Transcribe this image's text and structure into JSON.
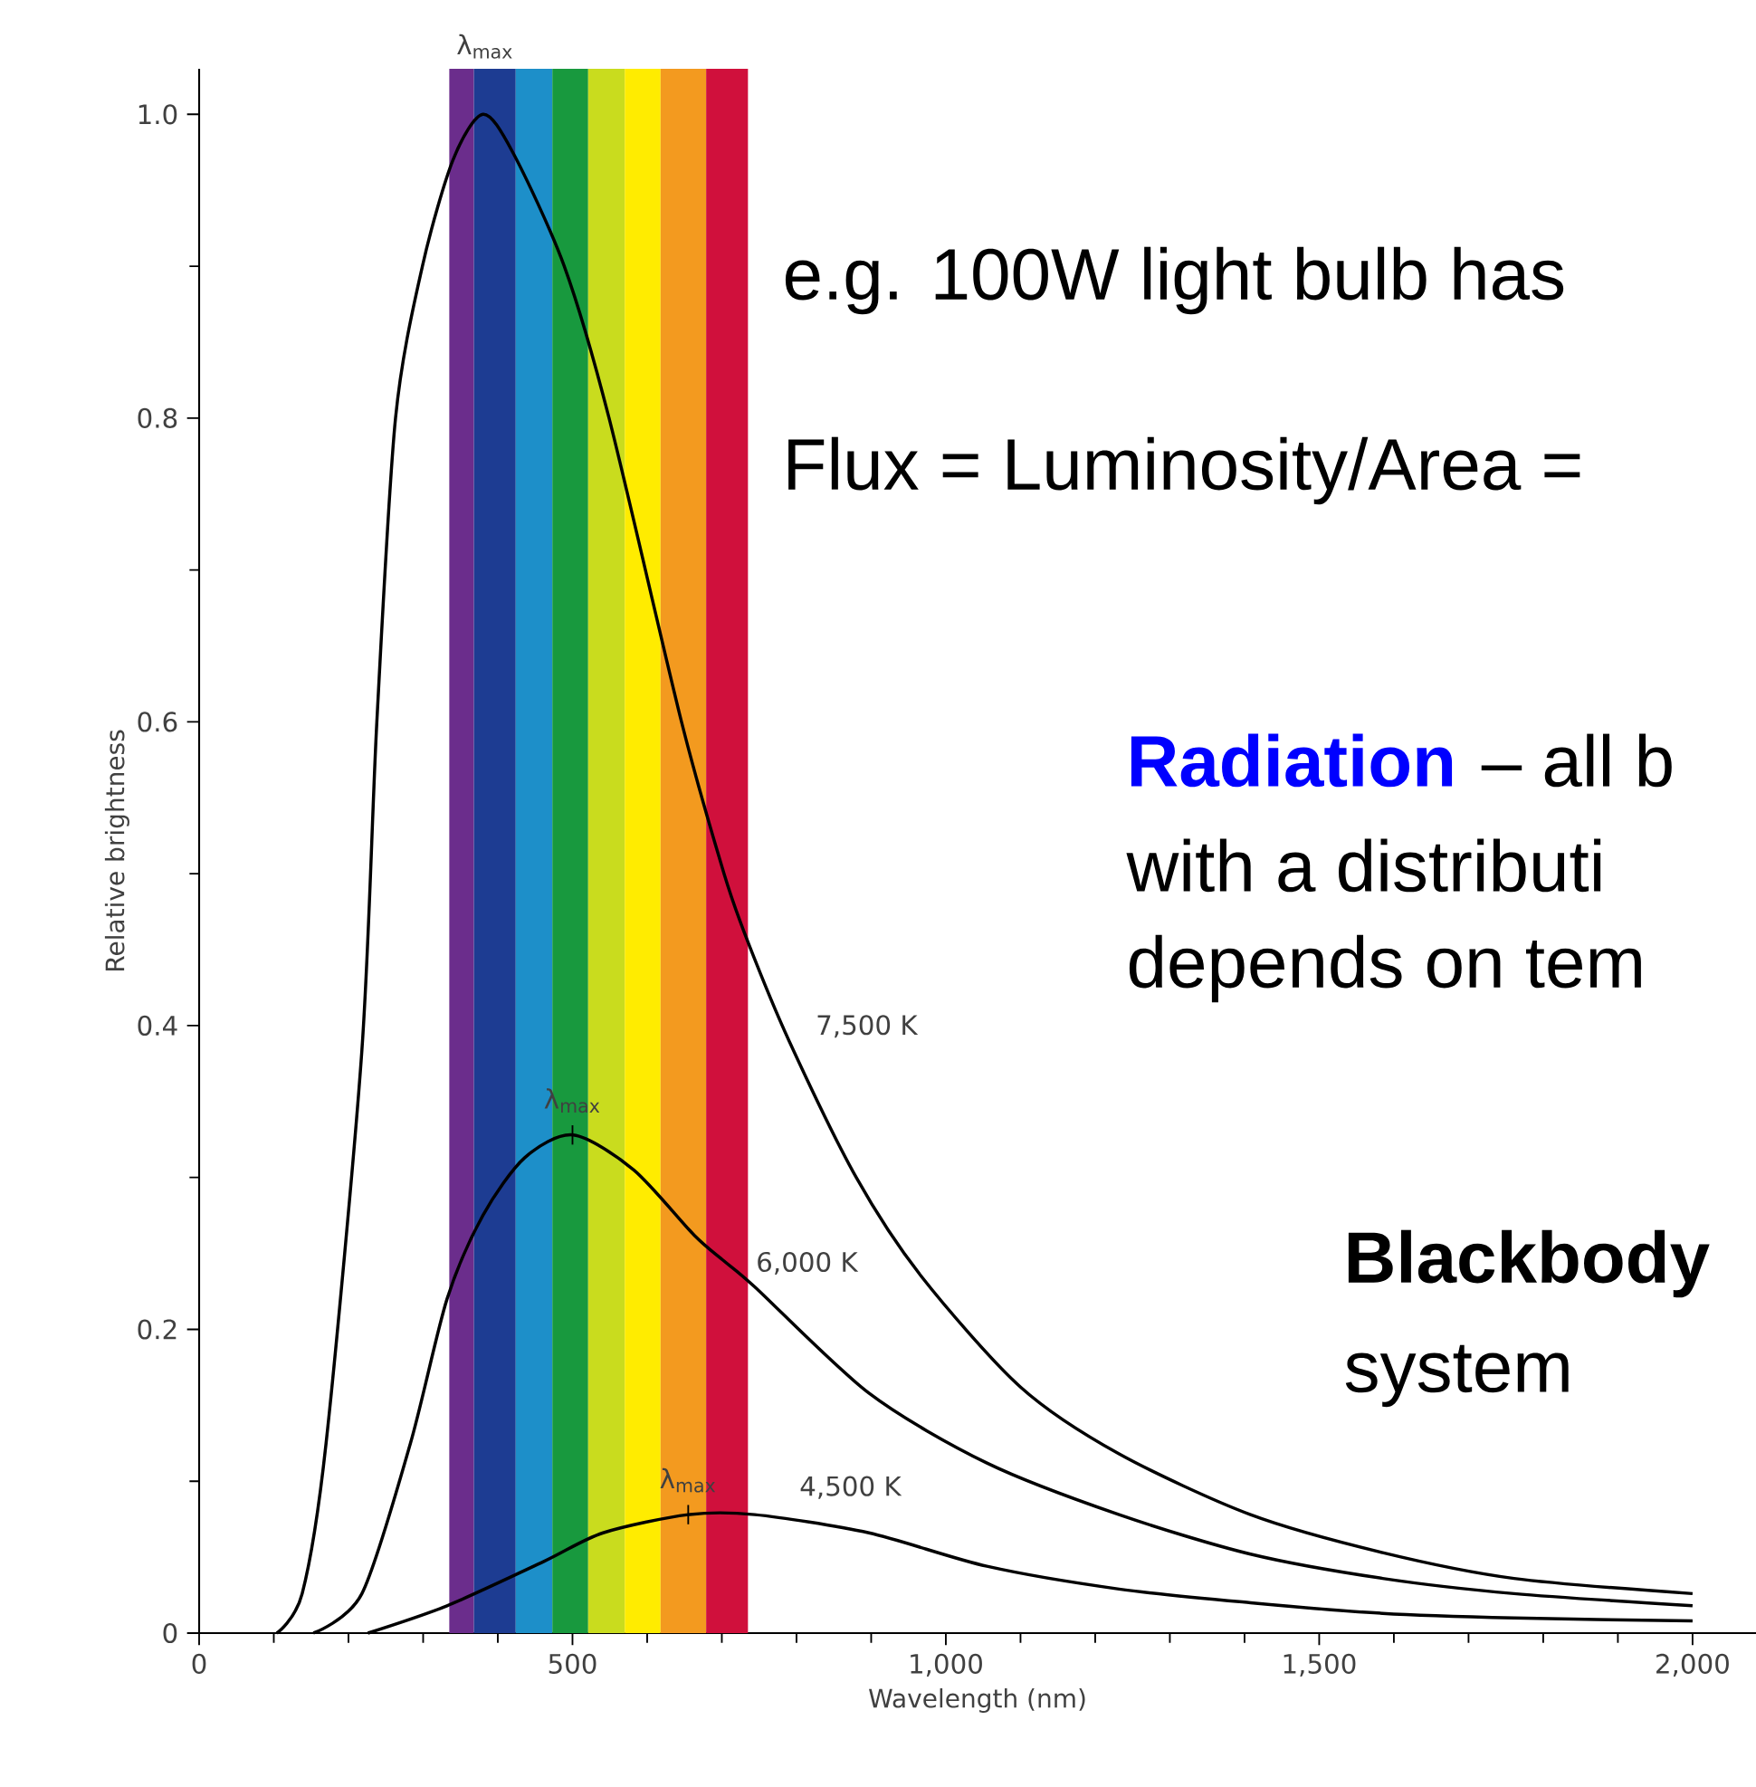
{
  "chart_data": {
    "type": "line",
    "xlabel": "Wavelength (nm)",
    "ylabel": "Relative brightness",
    "xlim": [
      0,
      2085
    ],
    "ylim": [
      0,
      1.03
    ],
    "xticks": [
      0,
      500,
      {
        "value": 1000,
        "label": "1,000"
      },
      {
        "value": 1500,
        "label": "1,500"
      },
      {
        "value": 2000,
        "label": "2,000"
      }
    ],
    "yticks": [
      0,
      0.2,
      0.4,
      0.6,
      0.8,
      {
        "value": 1,
        "label": "1.0"
      }
    ],
    "series": [
      {
        "name": "7,500 K",
        "color": "#000000",
        "x": [
          104,
          138,
          170,
          218,
          238,
          263,
          299,
          340,
          380,
          420,
          489,
          549,
          646,
          703,
          735,
          790,
          880,
          967,
          1100,
          1232,
          1408,
          1585,
          1761,
          2000
        ],
        "values": [
          0,
          0.026,
          0.125,
          0.384,
          0.6,
          0.8,
          0.9,
          0.97,
          1.0,
          0.975,
          0.9,
          0.8,
          0.6,
          0.5,
          0.455,
          0.39,
          0.3,
          0.235,
          0.162,
          0.118,
          0.078,
          0.053,
          0.036,
          0.026
        ]
      },
      {
        "name": "6,000 K",
        "color": "#000000",
        "x": [
          153,
          218,
          283,
          332,
          380,
          436,
          501,
          582,
          663,
          703,
          744,
          897,
          1055,
          1232,
          1408,
          1585,
          1761,
          2000
        ],
        "values": [
          0,
          0.026,
          0.125,
          0.22,
          0.275,
          0.313,
          0.328,
          0.305,
          0.262,
          0.245,
          0.228,
          0.158,
          0.112,
          0.078,
          0.052,
          0.036,
          0.026,
          0.018
        ]
      },
      {
        "name": "4,500 K",
        "color": "#000000",
        "x": [
          226,
          332,
          461,
          541,
          655,
          744,
          897,
          1055,
          1232,
          1408,
          1585,
          1761,
          2000
        ],
        "values": [
          0,
          0.018,
          0.047,
          0.066,
          0.078,
          0.078,
          0.066,
          0.044,
          0.029,
          0.02,
          0.013,
          0.01,
          0.008
        ]
      }
    ],
    "bands": [
      {
        "axis": "x",
        "from": 335,
        "to": 368,
        "color": "#6b2d8c"
      },
      {
        "axis": "x",
        "from": 368,
        "to": 424,
        "color": "#1d3c92"
      },
      {
        "axis": "x",
        "from": 424,
        "to": 473,
        "color": "#1d8fc9"
      },
      {
        "axis": "x",
        "from": 473,
        "to": 521,
        "color": "#18993e"
      },
      {
        "axis": "x",
        "from": 521,
        "to": 570,
        "color": "#c9dc1e"
      },
      {
        "axis": "x",
        "from": 570,
        "to": 618,
        "color": "#ffec00"
      },
      {
        "axis": "x",
        "from": 618,
        "to": 679,
        "color": "#f39a1f"
      },
      {
        "axis": "x",
        "from": 679,
        "to": 735,
        "color": "#d0103c"
      }
    ],
    "annotations": [
      {
        "text": "λ$_{max}$",
        "x": 383,
        "y": 1.0
      },
      {
        "text": "λ$_{max}$",
        "x": 500,
        "y": 0.328
      },
      {
        "text": "λ$_{max}$",
        "x": 655,
        "y": 0.078
      },
      "e.g. 100W light bulb has",
      "Flux = Luminosity/Area =",
      "Radiation",
      "– all b",
      "with a distributi",
      "depends on tem",
      "Blackbody",
      "system"
    ]
  }
}
